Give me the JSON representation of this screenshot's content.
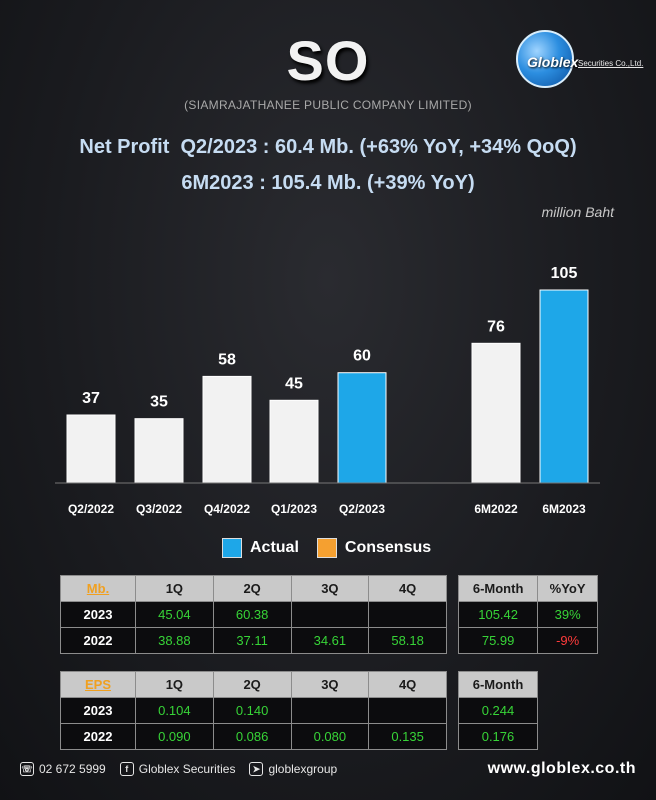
{
  "header": {
    "ticker": "SO",
    "company": "(SIAMRAJATHANEE PUBLIC COMPANY LIMITED)",
    "logo_text": "Globlex",
    "logo_sub": "Securities Co.,Ltd.",
    "headline1": "Net Profit  Q2/2023 : 60.4 Mb. (+63% YoY, +34% QoQ)",
    "headline2": "6M2023 : 105.4 Mb. (+39% YoY)",
    "unit": "million Baht"
  },
  "chart_data": {
    "type": "bar",
    "categories": [
      "Q2/2022",
      "Q3/2022",
      "Q4/2022",
      "Q1/2023",
      "Q2/2023",
      "",
      "6M2022",
      "6M2023"
    ],
    "values": [
      37,
      35,
      58,
      45,
      60,
      null,
      76,
      105
    ],
    "labels": [
      "37",
      "35",
      "58",
      "45",
      "60",
      "",
      "76",
      "105"
    ],
    "highlight": [
      false,
      false,
      false,
      false,
      true,
      false,
      false,
      true
    ],
    "colors": {
      "actual": "#1ea7e8",
      "base": "#f2f2f2",
      "consensus": "#f5a030"
    },
    "ylim": [
      0,
      105
    ],
    "legend": [
      "Actual",
      "Consensus"
    ],
    "legend_position": "bottom-center"
  },
  "table_mb": {
    "corner": "Mb.",
    "headers": [
      "1Q",
      "2Q",
      "3Q",
      "4Q"
    ],
    "rows": [
      {
        "year": "2023",
        "values": [
          "45.04",
          "60.38",
          "",
          ""
        ]
      },
      {
        "year": "2022",
        "values": [
          "38.88",
          "37.11",
          "34.61",
          "58.18"
        ]
      }
    ],
    "side_headers": [
      "6-Month",
      "%YoY"
    ],
    "side_rows": [
      [
        "105.42",
        "39%"
      ],
      [
        "75.99",
        "-9%"
      ]
    ]
  },
  "table_eps": {
    "corner": "EPS",
    "headers": [
      "1Q",
      "2Q",
      "3Q",
      "4Q"
    ],
    "rows": [
      {
        "year": "2023",
        "values": [
          "0.104",
          "0.140",
          "",
          ""
        ]
      },
      {
        "year": "2022",
        "values": [
          "0.090",
          "0.086",
          "0.080",
          "0.135"
        ]
      }
    ],
    "side_headers": [
      "6-Month"
    ],
    "side_rows": [
      [
        "0.244"
      ],
      [
        "0.176"
      ]
    ]
  },
  "footer": {
    "phone": "02 672 5999",
    "facebook": "Globlex Securities",
    "telegram": "globlexgroup",
    "website": "www.globlex.co.th"
  }
}
